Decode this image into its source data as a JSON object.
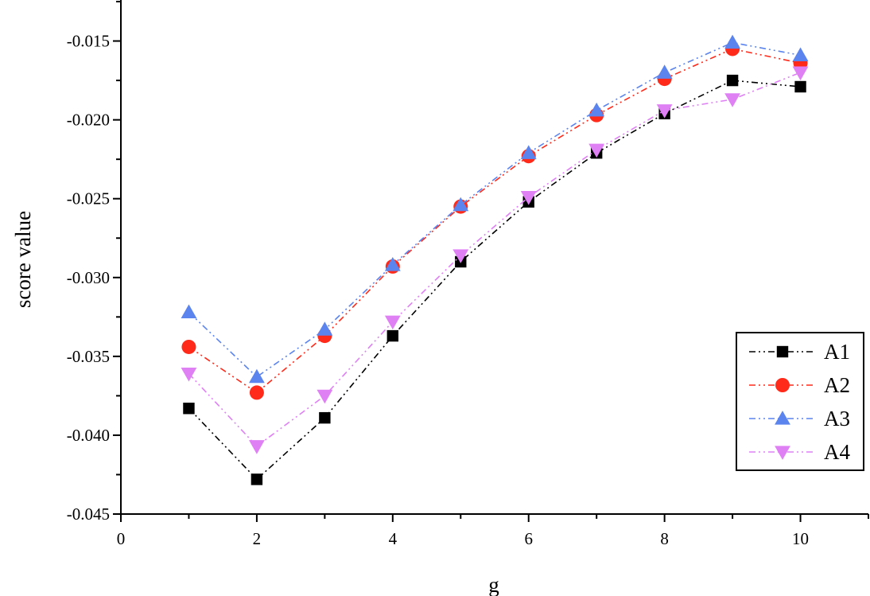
{
  "chart_data": {
    "type": "line",
    "xlabel": "g",
    "ylabel": "score value",
    "xlim": [
      0,
      11
    ],
    "ylim": [
      -0.045,
      -0.0125
    ],
    "x_ticks": [
      0,
      2,
      4,
      6,
      8,
      10
    ],
    "x_tick_labels": [
      "0",
      "2",
      "4",
      "6",
      "8",
      "10"
    ],
    "y_ticks": [
      -0.045,
      -0.04,
      -0.035,
      -0.03,
      -0.025,
      -0.02,
      -0.015
    ],
    "y_tick_labels": [
      "-0.045",
      "-0.040",
      "-0.035",
      "-0.030",
      "-0.025",
      "-0.020",
      "-0.015"
    ],
    "grid": false,
    "legend_position": "bottom-right",
    "x": [
      1,
      2,
      3,
      4,
      5,
      6,
      7,
      8,
      9,
      10
    ],
    "series": [
      {
        "name": "A1",
        "marker": "square",
        "color": "#000000",
        "values": [
          -0.0383,
          -0.0428,
          -0.0389,
          -0.0337,
          -0.029,
          -0.0252,
          -0.0221,
          -0.0196,
          -0.0175,
          -0.0179
        ]
      },
      {
        "name": "A2",
        "marker": "circle",
        "color": "#ff2a1a",
        "values": [
          -0.0344,
          -0.0373,
          -0.0337,
          -0.0293,
          -0.0255,
          -0.0223,
          -0.0197,
          -0.0174,
          -0.0155,
          -0.0164
        ]
      },
      {
        "name": "A3",
        "marker": "triangle-up",
        "color": "#5b84ee",
        "values": [
          -0.0322,
          -0.0363,
          -0.0333,
          -0.0292,
          -0.0254,
          -0.0221,
          -0.0194,
          -0.017,
          -0.0151,
          -0.0159
        ]
      },
      {
        "name": "A4",
        "marker": "triangle-down",
        "color": "#df80f5",
        "values": [
          -0.0361,
          -0.0407,
          -0.0375,
          -0.0328,
          -0.0286,
          -0.0249,
          -0.0219,
          -0.0194,
          -0.0187,
          -0.017
        ]
      }
    ]
  }
}
